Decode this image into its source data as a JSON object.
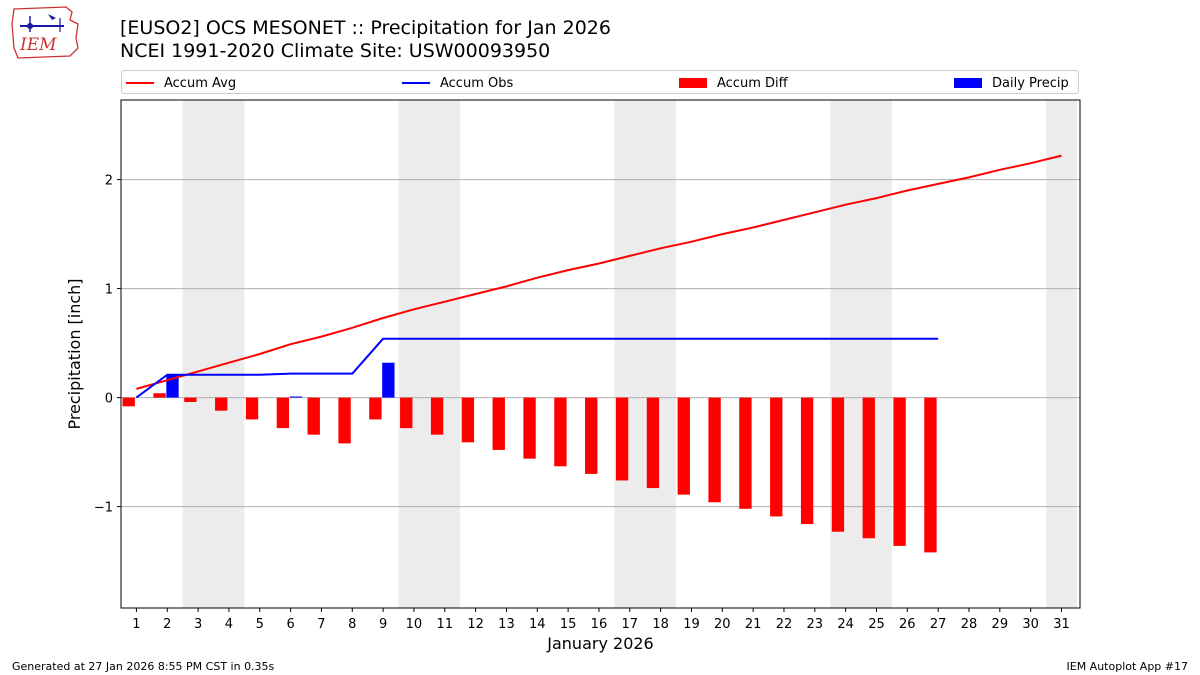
{
  "header": {
    "title_line1": "[EUSO2] OCS MESONET :: Precipitation for Jan 2026",
    "title_line2": "NCEI 1991-2020 Climate Site: USW00093950",
    "logo_text": "IEM"
  },
  "legend": {
    "items": [
      {
        "label": "Accum Avg",
        "kind": "line",
        "color": "#ff0000"
      },
      {
        "label": "Accum Obs",
        "kind": "line",
        "color": "#0000ff"
      },
      {
        "label": "Accum Diff",
        "kind": "bar",
        "color": "#ff0000"
      },
      {
        "label": "Daily Precip",
        "kind": "bar",
        "color": "#0000ff"
      }
    ]
  },
  "footer": {
    "generated": "Generated at 27 Jan 2026 8:55 PM CST in 0.35s",
    "app": "IEM Autoplot App #17"
  },
  "chart_data": {
    "type": "bar",
    "title": "[EUSO2] OCS MESONET :: Precipitation for Jan 2026",
    "subtitle": "NCEI 1991-2020 Climate Site: USW00093950",
    "xlabel": "January 2026",
    "ylabel": "Precipitation [inch]",
    "xlim": [
      0.5,
      31.6
    ],
    "ylim": [
      -1.93,
      2.73
    ],
    "yticks": [
      -1,
      0,
      1,
      2
    ],
    "ytick_labels": [
      "−1",
      "0",
      "1",
      "2"
    ],
    "days": [
      1,
      2,
      3,
      4,
      5,
      6,
      7,
      8,
      9,
      10,
      11,
      12,
      13,
      14,
      15,
      16,
      17,
      18,
      19,
      20,
      21,
      22,
      23,
      24,
      25,
      26,
      27,
      28,
      29,
      30,
      31
    ],
    "weekend_days": [
      3,
      4,
      10,
      11,
      17,
      18,
      24,
      25,
      31
    ],
    "grid": "horizontal",
    "series": [
      {
        "name": "Accum Avg",
        "type": "line",
        "color": "#ff0000",
        "days": [
          1,
          2,
          3,
          4,
          5,
          6,
          7,
          8,
          9,
          10,
          11,
          12,
          13,
          14,
          15,
          16,
          17,
          18,
          19,
          20,
          21,
          22,
          23,
          24,
          25,
          26,
          27,
          28,
          29,
          30,
          31
        ],
        "values": [
          0.08,
          0.16,
          0.24,
          0.32,
          0.4,
          0.49,
          0.56,
          0.64,
          0.73,
          0.81,
          0.88,
          0.95,
          1.02,
          1.1,
          1.17,
          1.23,
          1.3,
          1.37,
          1.43,
          1.5,
          1.56,
          1.63,
          1.7,
          1.77,
          1.83,
          1.9,
          1.96,
          2.02,
          2.09,
          2.15,
          2.22
        ]
      },
      {
        "name": "Accum Obs",
        "type": "line",
        "color": "#0000ff",
        "days": [
          1,
          2,
          3,
          4,
          5,
          6,
          7,
          8,
          9,
          10,
          11,
          12,
          13,
          14,
          15,
          16,
          17,
          18,
          19,
          20,
          21,
          22,
          23,
          24,
          25,
          26,
          27
        ],
        "values": [
          0.0,
          0.21,
          0.21,
          0.21,
          0.21,
          0.22,
          0.22,
          0.22,
          0.54,
          0.54,
          0.54,
          0.54,
          0.54,
          0.54,
          0.54,
          0.54,
          0.54,
          0.54,
          0.54,
          0.54,
          0.54,
          0.54,
          0.54,
          0.54,
          0.54,
          0.54,
          0.54
        ]
      },
      {
        "name": "Accum Diff",
        "type": "bar",
        "color": "#ff0000",
        "days": [
          1,
          2,
          3,
          4,
          5,
          6,
          7,
          8,
          9,
          10,
          11,
          12,
          13,
          14,
          15,
          16,
          17,
          18,
          19,
          20,
          21,
          22,
          23,
          24,
          25,
          26,
          27
        ],
        "values": [
          -0.08,
          0.04,
          -0.04,
          -0.12,
          -0.2,
          -0.28,
          -0.34,
          -0.42,
          -0.2,
          -0.28,
          -0.34,
          -0.41,
          -0.48,
          -0.56,
          -0.63,
          -0.7,
          -0.76,
          -0.83,
          -0.89,
          -0.96,
          -1.02,
          -1.09,
          -1.16,
          -1.23,
          -1.29,
          -1.36,
          -1.42
        ]
      },
      {
        "name": "Daily Precip",
        "type": "bar",
        "color": "#0000ff",
        "days": [
          2,
          6,
          9
        ],
        "values": [
          0.21,
          0.01,
          0.32
        ]
      }
    ]
  }
}
